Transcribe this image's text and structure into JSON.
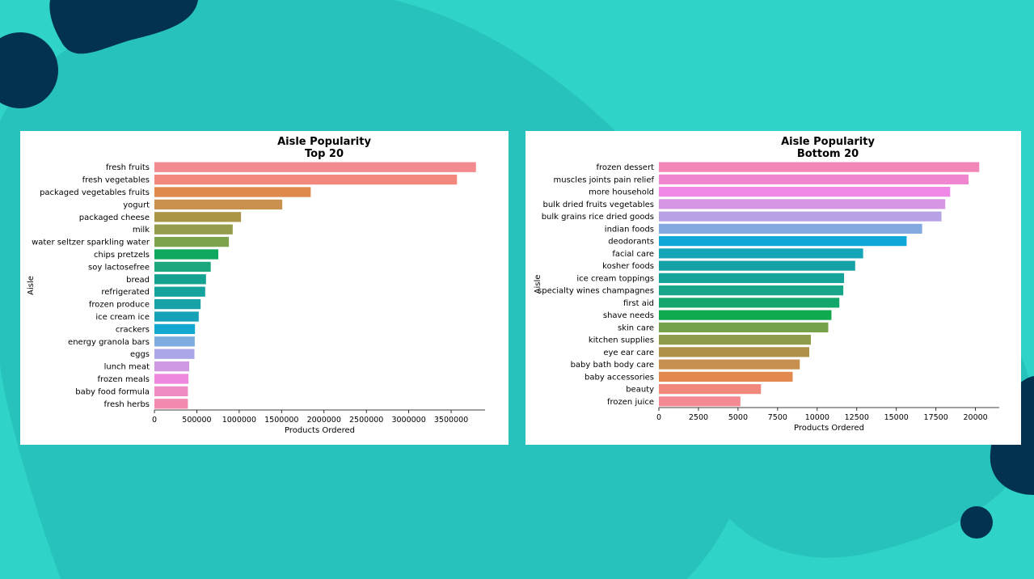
{
  "chart_data": [
    {
      "type": "bar",
      "orientation": "horizontal",
      "title": "Aisle Popularity",
      "subtitle": "Top 20",
      "xlabel": "Products Ordered",
      "ylabel": "Aisle",
      "xlim": [
        0,
        3900000
      ],
      "xticks": [
        0,
        500000,
        1000000,
        1500000,
        2000000,
        2500000,
        3000000,
        3500000
      ],
      "xtick_labels": [
        "0",
        "500000",
        "1000000",
        "1500000",
        "2000000",
        "2500000",
        "3000000",
        "3500000"
      ],
      "grid": false,
      "categories": [
        "fresh fruits",
        "fresh vegetables",
        "packaged vegetables fruits",
        "yogurt",
        "packaged cheese",
        "milk",
        "water seltzer sparkling water",
        "chips pretzels",
        "soy lactosefree",
        "bread",
        "refrigerated",
        "frozen produce",
        "ice cream ice",
        "crackers",
        "energy granola bars",
        "eggs",
        "lunch meat",
        "frozen meals",
        "baby food formula",
        "fresh herbs"
      ],
      "values": [
        3792661,
        3568630,
        1843806,
        1507583,
        1021462,
        923659,
        878150,
        753739,
        664493,
        608469,
        599109,
        545107,
        522654,
        478430,
        475875,
        472009,
        410535,
        401000,
        395000,
        395000
      ],
      "colors": [
        "#f38a8f",
        "#f2887c",
        "#e0894d",
        "#c99050",
        "#a99448",
        "#959c4b",
        "#7ea34d",
        "#0fa85e",
        "#1ca77e",
        "#15a391",
        "#16a39e",
        "#17a2a7",
        "#16a1b6",
        "#12a8d0",
        "#7cadde",
        "#aba6e8",
        "#d09ae3",
        "#ee87de",
        "#f08bc4",
        "#f28ab1"
      ]
    },
    {
      "type": "bar",
      "orientation": "horizontal",
      "title": "Aisle Popularity",
      "subtitle": "Bottom 20",
      "xlabel": "Products Ordered",
      "ylabel": "Aisle",
      "xlim": [
        0,
        21500
      ],
      "xticks": [
        0,
        2500,
        5000,
        7500,
        10000,
        12500,
        15000,
        17500,
        20000
      ],
      "xtick_labels": [
        "0",
        "2500",
        "5000",
        "7500",
        "10000",
        "12500",
        "15000",
        "17500",
        "20000"
      ],
      "grid": false,
      "categories": [
        "frozen dessert",
        "muscles joints pain relief",
        "more household",
        "bulk dried fruits vegetables",
        "bulk grains rice dried goods",
        "indian foods",
        "deodorants",
        "facial care",
        "kosher foods",
        "ice cream toppings",
        "specialty wines champagnes",
        "first aid",
        "shave needs",
        "skin care",
        "kitchen supplies",
        "eye ear care",
        "baby bath body care",
        "baby accessories",
        "beauty",
        "frozen juice"
      ],
      "values": [
        20238,
        19560,
        18400,
        18090,
        17850,
        16630,
        15650,
        12900,
        12400,
        11700,
        11650,
        11400,
        10900,
        10700,
        9600,
        9500,
        8900,
        8450,
        6450,
        5150
      ],
      "colors": [
        "#f286b6",
        "#f086cf",
        "#ee87e5",
        "#d695e3",
        "#b7a2e6",
        "#82aae1",
        "#0fa8d6",
        "#14a5b9",
        "#15a2a7",
        "#16a39a",
        "#19a589",
        "#14a76c",
        "#0fa94f",
        "#73a24a",
        "#8e9c4a",
        "#ae924a",
        "#c78f50",
        "#e2894f",
        "#f2887c",
        "#f38a91"
      ]
    }
  ]
}
